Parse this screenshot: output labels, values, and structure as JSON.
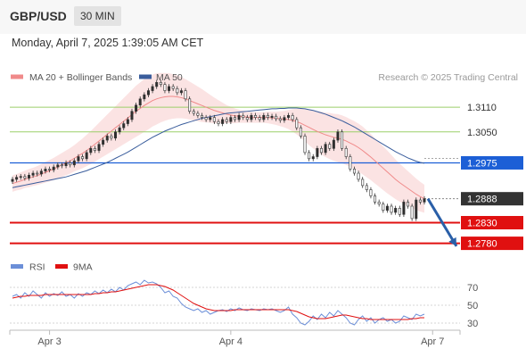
{
  "header": {
    "pair": "GBP/USD",
    "timeframe": "30 MIN",
    "datetime": "Monday, April 7, 2025 1:39:05 AM CET"
  },
  "colors": {
    "up": "#2e2e2e",
    "down": "#ffffff",
    "wick": "#333333",
    "ma20": "#f08a8a",
    "ma50": "#3a5d9c",
    "band": "#fbe3e3",
    "support": "#e01010",
    "resistance": "#9bcf6a",
    "pivot": "#1c5fd6",
    "price": "#333333",
    "rsi": "#6c8fd8",
    "rsi_ma": "#e01010",
    "arrow": "#2a5fa8"
  },
  "chart_data": [
    {
      "type": "candlestick",
      "title": "",
      "legend": {
        "placement": "top-left",
        "items": [
          "MA 20 + Bollinger Bands",
          "MA 50"
        ]
      },
      "watermark": "Research © 2025 Trading Central",
      "x_tick_labels": [
        "Apr 3",
        "Apr 4",
        "Apr 7"
      ],
      "x_tick_index": [
        9,
        53,
        102
      ],
      "ylim": [
        1.2764,
        1.3201
      ],
      "levels": [
        {
          "value": 1.311,
          "label": "1.3110",
          "kind": "resistance"
        },
        {
          "value": 1.305,
          "label": "1.3050",
          "kind": "resistance"
        },
        {
          "value": 1.2975,
          "label": "1.2975",
          "kind": "pivot"
        },
        {
          "value": 1.2888,
          "label": "1.2888",
          "kind": "current"
        },
        {
          "value": 1.283,
          "label": "1.2830",
          "kind": "support"
        },
        {
          "value": 1.278,
          "label": "1.2780",
          "kind": "support"
        }
      ],
      "closes": [
        1.2935,
        1.294,
        1.2942,
        1.2938,
        1.2945,
        1.295,
        1.2948,
        1.2955,
        1.296,
        1.2958,
        1.2965,
        1.297,
        1.2968,
        1.2975,
        1.297,
        1.298,
        1.299,
        1.2985,
        1.3,
        1.301,
        1.3005,
        1.302,
        1.303,
        1.304,
        1.3035,
        1.305,
        1.306,
        1.307,
        1.308,
        1.31,
        1.3115,
        1.313,
        1.314,
        1.315,
        1.316,
        1.317,
        1.3165,
        1.315,
        1.316,
        1.3155,
        1.3145,
        1.315,
        1.313,
        1.31,
        1.3095,
        1.309,
        1.3085,
        1.308,
        1.3085,
        1.3075,
        1.307,
        1.308,
        1.3075,
        1.3085,
        1.308,
        1.309,
        1.3085,
        1.308,
        1.309,
        1.3085,
        1.308,
        1.309,
        1.3085,
        1.3088,
        1.3082,
        1.3078,
        1.3085,
        1.309,
        1.308,
        1.306,
        1.304,
        1.3,
        1.2985,
        1.299,
        1.301,
        1.3,
        1.302,
        1.301,
        1.303,
        1.305,
        1.301,
        1.299,
        1.296,
        1.295,
        1.2935,
        1.292,
        1.291,
        1.2895,
        1.288,
        1.2875,
        1.286,
        1.287,
        1.2855,
        1.2865,
        1.285,
        1.288,
        1.287,
        1.284,
        1.2885,
        1.288,
        1.2888
      ],
      "ma20": [
        1.2925,
        1.2928,
        1.2931,
        1.2935,
        1.2938,
        1.2941,
        1.2944,
        1.2948,
        1.2952,
        1.2956,
        1.296,
        1.2965,
        1.297,
        1.2975,
        1.298,
        1.2986,
        1.2992,
        1.2998,
        1.3005,
        1.3012,
        1.302,
        1.3028,
        1.3036,
        1.3044,
        1.3052,
        1.306,
        1.3068,
        1.3076,
        1.3084,
        1.3092,
        1.31,
        1.3107,
        1.3114,
        1.312,
        1.3126,
        1.313,
        1.3133,
        1.3135,
        1.3136,
        1.3136,
        1.3135,
        1.3133,
        1.313,
        1.3126,
        1.3122,
        1.3118,
        1.3114,
        1.311,
        1.3106,
        1.3102,
        1.3099,
        1.3096,
        1.3093,
        1.3091,
        1.3089,
        1.3088,
        1.3087,
        1.3086,
        1.3085,
        1.3085,
        1.3085,
        1.3085,
        1.3085,
        1.3084,
        1.3083,
        1.3082,
        1.3081,
        1.308,
        1.3078,
        1.3075,
        1.3071,
        1.3066,
        1.3061,
        1.3056,
        1.3051,
        1.3047,
        1.3043,
        1.304,
        1.3037,
        1.3035,
        1.3032,
        1.3028,
        1.3023,
        1.3018,
        1.3012,
        1.3005,
        1.2997,
        1.2989,
        1.298,
        1.2971,
        1.2962,
        1.2953,
        1.2944,
        1.2935,
        1.2927,
        1.292,
        1.2913,
        1.2906,
        1.2899,
        1.2893,
        1.2888
      ],
      "ma50": [
        1.2915,
        1.2917,
        1.2919,
        1.2921,
        1.2923,
        1.2925,
        1.2927,
        1.2929,
        1.2931,
        1.2933,
        1.2935,
        1.2937,
        1.2939,
        1.2941,
        1.2944,
        1.2947,
        1.295,
        1.2953,
        1.2956,
        1.296,
        1.2964,
        1.2968,
        1.2972,
        1.2976,
        1.2981,
        1.2986,
        1.2991,
        1.2996,
        1.3001,
        1.3007,
        1.3013,
        1.3019,
        1.3025,
        1.3031,
        1.3037,
        1.3042,
        1.3047,
        1.3052,
        1.3056,
        1.306,
        1.3064,
        1.3068,
        1.3071,
        1.3074,
        1.3077,
        1.308,
        1.3083,
        1.3085,
        1.3087,
        1.3089,
        1.3091,
        1.3093,
        1.3095,
        1.3096,
        1.3097,
        1.3098,
        1.3099,
        1.31,
        1.3101,
        1.3102,
        1.3103,
        1.3104,
        1.3105,
        1.3106,
        1.3106,
        1.3107,
        1.3107,
        1.3108,
        1.3108,
        1.3108,
        1.3107,
        1.3106,
        1.3104,
        1.3102,
        1.3099,
        1.3096,
        1.3093,
        1.3089,
        1.3085,
        1.3081,
        1.3077,
        1.3072,
        1.3067,
        1.3062,
        1.3056,
        1.305,
        1.3044,
        1.3038,
        1.3032,
        1.3026,
        1.302,
        1.3014,
        1.3008,
        1.3002,
        1.2997,
        1.2992,
        1.2987,
        1.2983,
        1.2979,
        1.2976,
        1.2974
      ],
      "band_width": [
        0.002,
        0.002,
        0.0021,
        0.0021,
        0.0022,
        0.0022,
        0.0023,
        0.0024,
        0.0025,
        0.0026,
        0.0027,
        0.0028,
        0.0029,
        0.003,
        0.0031,
        0.0032,
        0.0034,
        0.0036,
        0.0038,
        0.004,
        0.0042,
        0.0044,
        0.0046,
        0.0048,
        0.005,
        0.0052,
        0.0054,
        0.0056,
        0.0058,
        0.006,
        0.0062,
        0.0063,
        0.0064,
        0.0064,
        0.0063,
        0.0062,
        0.006,
        0.0058,
        0.0056,
        0.0054,
        0.0052,
        0.005,
        0.0048,
        0.0046,
        0.0044,
        0.0042,
        0.004,
        0.0037,
        0.0034,
        0.0031,
        0.0028,
        0.0025,
        0.0022,
        0.002,
        0.0018,
        0.0016,
        0.0015,
        0.0014,
        0.0013,
        0.0013,
        0.0013,
        0.0013,
        0.0014,
        0.0015,
        0.0016,
        0.0018,
        0.002,
        0.0023,
        0.0027,
        0.0031,
        0.0035,
        0.0039,
        0.0043,
        0.0046,
        0.0049,
        0.0052,
        0.0054,
        0.0056,
        0.0057,
        0.0058,
        0.0058,
        0.0058,
        0.0058,
        0.0058,
        0.0058,
        0.0058,
        0.0057,
        0.0056,
        0.0055,
        0.0054,
        0.0053,
        0.0052,
        0.005,
        0.0048,
        0.0046,
        0.0044,
        0.0042,
        0.004,
        0.0038,
        0.0036,
        0.0034
      ]
    },
    {
      "type": "line",
      "legend": {
        "placement": "top-left",
        "items": [
          "RSI",
          "9MA"
        ]
      },
      "ylim": [
        22,
        82
      ],
      "levels": [
        {
          "value": 70,
          "label": "70"
        },
        {
          "value": 50,
          "label": "50"
        },
        {
          "value": 30,
          "label": "30"
        }
      ],
      "rsi": [
        60,
        62,
        58,
        64,
        60,
        66,
        62,
        58,
        64,
        60,
        63,
        61,
        65,
        60,
        62,
        58,
        63,
        60,
        64,
        62,
        66,
        63,
        67,
        64,
        68,
        65,
        70,
        67,
        72,
        74,
        76,
        73,
        78,
        75,
        76,
        74,
        70,
        64,
        66,
        60,
        58,
        52,
        48,
        46,
        44,
        46,
        42,
        44,
        40,
        42,
        44,
        45,
        43,
        46,
        44,
        47,
        45,
        44,
        46,
        45,
        44,
        46,
        45,
        46,
        44,
        42,
        44,
        48,
        40,
        36,
        30,
        28,
        32,
        38,
        34,
        40,
        36,
        42,
        38,
        44,
        40,
        36,
        30,
        28,
        34,
        38,
        32,
        36,
        30,
        34,
        36,
        32,
        34,
        30,
        32,
        38,
        36,
        34,
        40,
        38,
        40
      ],
      "rsi_ma": [
        58,
        59,
        60,
        60,
        61,
        61,
        61,
        61,
        62,
        62,
        62,
        62,
        62,
        62,
        62,
        62,
        62,
        62,
        62,
        62,
        63,
        63,
        64,
        64,
        65,
        65,
        66,
        67,
        68,
        69,
        70,
        71,
        72,
        73,
        73,
        73,
        72,
        71,
        69,
        67,
        64,
        61,
        58,
        55,
        52,
        50,
        48,
        46,
        45,
        44,
        44,
        44,
        44,
        44,
        45,
        45,
        45,
        45,
        45,
        45,
        45,
        45,
        45,
        45,
        45,
        45,
        45,
        45,
        44,
        43,
        41,
        39,
        37,
        36,
        35,
        35,
        35,
        36,
        37,
        38,
        39,
        39,
        38,
        37,
        36,
        35,
        35,
        34,
        34,
        34,
        34,
        34,
        34,
        34,
        34,
        34,
        34,
        35,
        35,
        36,
        36
      ]
    }
  ]
}
